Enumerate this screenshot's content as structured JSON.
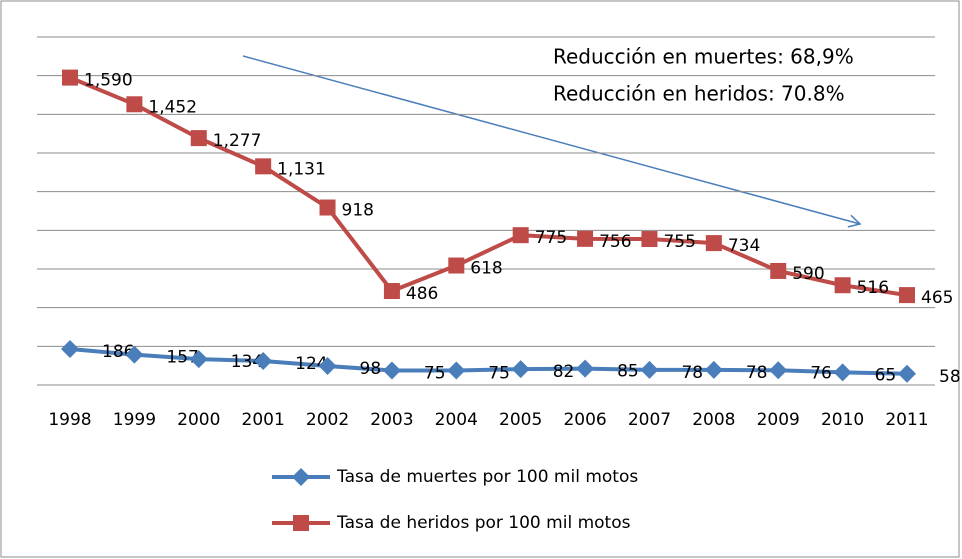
{
  "chart_data": {
    "type": "line",
    "categories": [
      "1998",
      "1999",
      "2000",
      "2001",
      "2002",
      "2003",
      "2004",
      "2005",
      "2006",
      "2007",
      "2008",
      "2009",
      "2010",
      "2011"
    ],
    "series": [
      {
        "name": "Tasa de muertes por 100 mil motos",
        "color": "#4a7ebb",
        "marker": "diamond",
        "values": [
          186,
          157,
          134,
          124,
          98,
          75,
          75,
          82,
          85,
          78,
          78,
          76,
          65,
          58
        ]
      },
      {
        "name": "Tasa de heridos por 100 mil motos",
        "color": "#be4b48",
        "marker": "square",
        "values": [
          1590,
          1452,
          1277,
          1131,
          918,
          486,
          618,
          775,
          756,
          755,
          734,
          590,
          516,
          465
        ],
        "value_labels": [
          "1,590",
          "1,452",
          "1,277",
          "1,131",
          "918",
          "486",
          "618",
          "775",
          "756",
          "755",
          "734",
          "590",
          "516",
          "465"
        ]
      }
    ],
    "ylim": [
      0,
      1800
    ],
    "yticks": [
      0,
      200,
      400,
      600,
      800,
      1000,
      1200,
      1400,
      1600,
      1800
    ],
    "grid": true,
    "annotations": [
      "Reducción en muertes: 68,9%",
      "Reducción en heridos: 70.8%"
    ],
    "legend": "bottom"
  }
}
